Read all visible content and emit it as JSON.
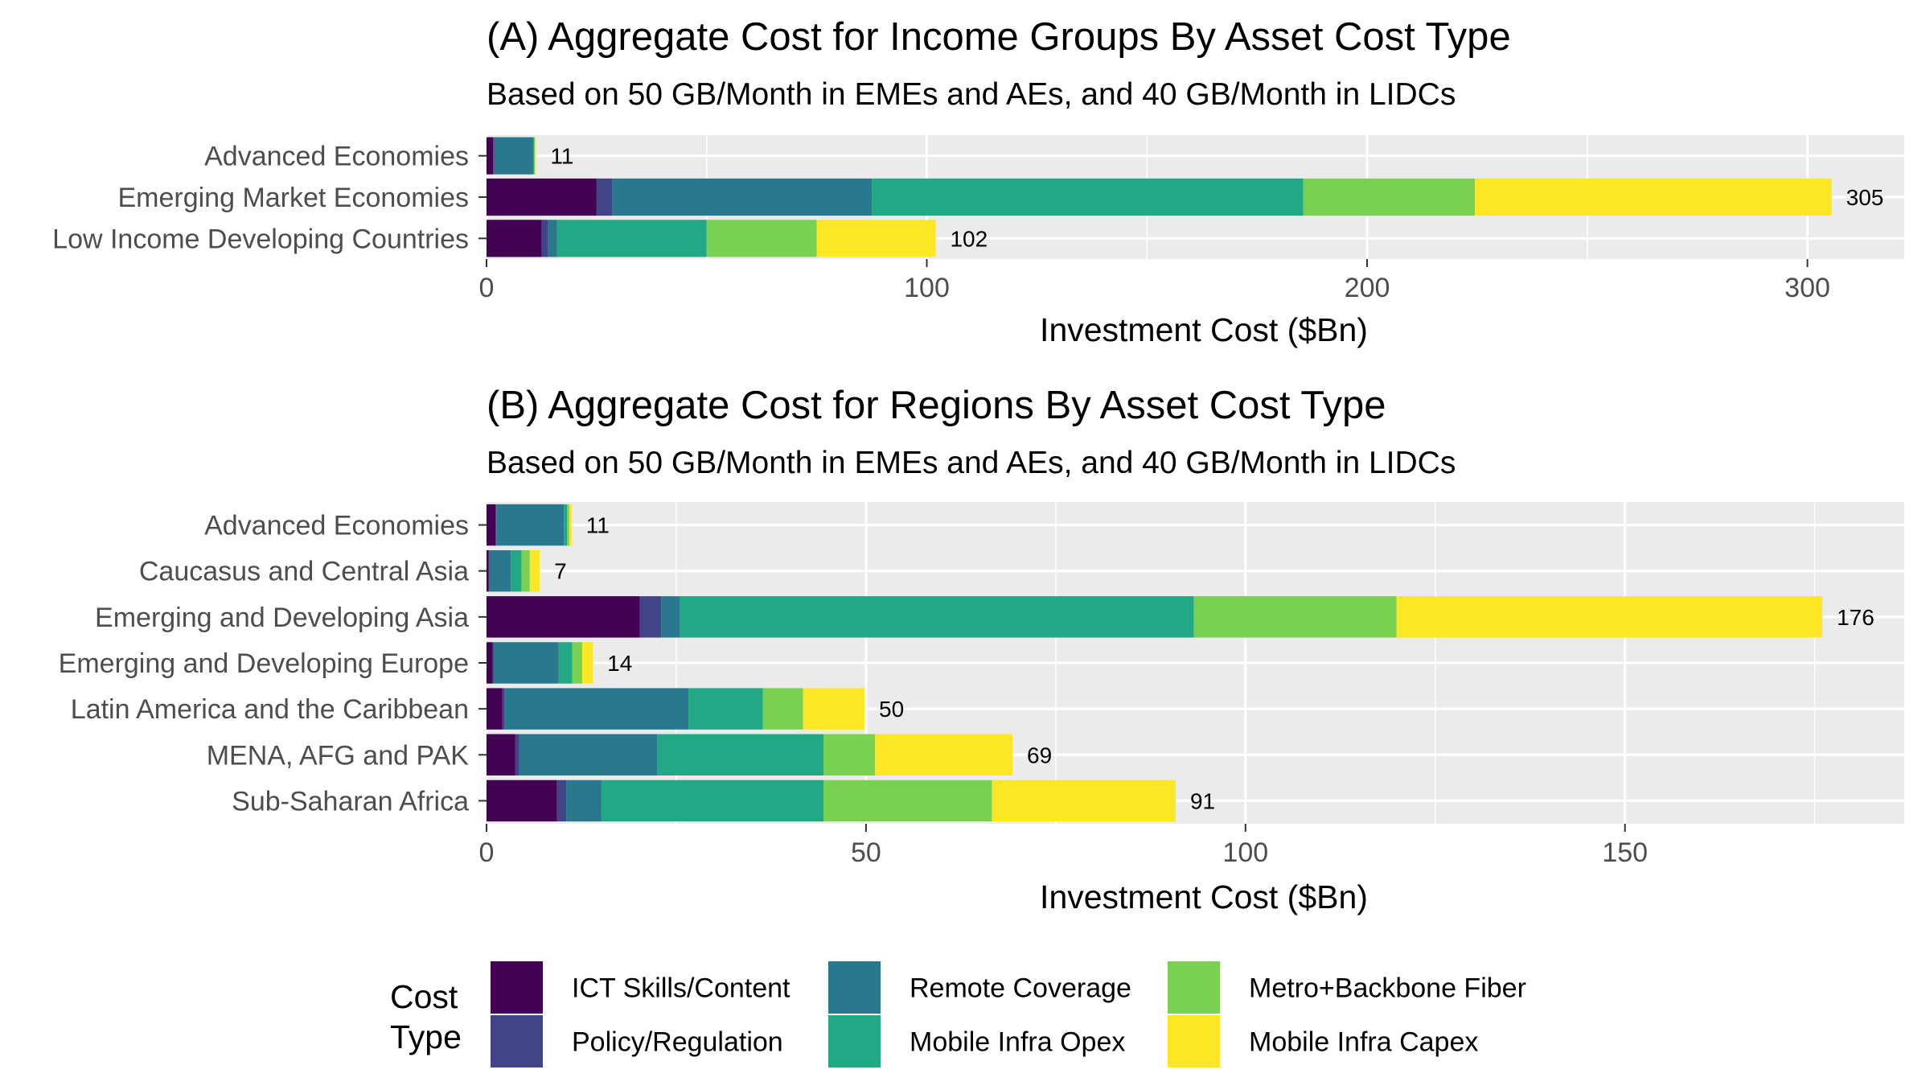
{
  "chart_data": [
    {
      "type": "bar",
      "orientation": "horizontal",
      "stacked": true,
      "title": "(A) Aggregate Cost for Income Groups By Asset Cost Type",
      "subtitle": "Based on 50 GB/Month in EMEs and AEs, and 40 GB/Month in LIDCs",
      "xlabel": "Investment Cost ($Bn)",
      "ylabel": "",
      "xlim": [
        0,
        322
      ],
      "xticks": [
        0,
        100,
        200,
        300
      ],
      "grid": true,
      "categories": [
        "Advanced Economies",
        "Emerging Market Economies",
        "Low Income Developing Countries"
      ],
      "totals": [
        "11",
        "305",
        "102"
      ],
      "series": [
        {
          "name": "ICT Skills/Content",
          "color": "#440154",
          "values": [
            1.5,
            25,
            12.5
          ]
        },
        {
          "name": "Policy/Regulation",
          "color": "#414487",
          "values": [
            0.3,
            3.5,
            1.5
          ]
        },
        {
          "name": "Remote Coverage",
          "color": "#2a788e",
          "values": [
            8.7,
            59,
            2
          ]
        },
        {
          "name": "Mobile Infra Opex",
          "color": "#22a884",
          "values": [
            0.3,
            98,
            34
          ]
        },
        {
          "name": "Metro+Backbone Fiber",
          "color": "#7ad151",
          "values": [
            0.2,
            39,
            25
          ]
        },
        {
          "name": "Mobile Infra Capex",
          "color": "#fde725",
          "values": [
            0.2,
            81,
            27
          ]
        }
      ]
    },
    {
      "type": "bar",
      "orientation": "horizontal",
      "stacked": true,
      "title": "(B) Aggregate Cost for Regions By Asset Cost Type",
      "subtitle": "Based on 50 GB/Month in EMEs and AEs, and 40 GB/Month in LIDCs",
      "xlabel": "Investment Cost ($Bn)",
      "ylabel": "",
      "xlim": [
        0,
        186.8
      ],
      "xticks": [
        0,
        50,
        100,
        150
      ],
      "grid": true,
      "categories": [
        "Advanced Economies",
        "Caucasus and Central Asia",
        "Emerging and Developing Asia",
        "Emerging and Developing Europe",
        "Latin America and the Caribbean",
        "MENA, AFG and PAK",
        "Sub-Saharan Africa"
      ],
      "totals": [
        "11",
        "7",
        "176",
        "14",
        "50",
        "69",
        "91"
      ],
      "series": [
        {
          "name": "ICT Skills/Content",
          "color": "#440154",
          "values": [
            1.2,
            0.3,
            20.2,
            0.8,
            2.1,
            3.8,
            9.3
          ]
        },
        {
          "name": "Policy/Regulation",
          "color": "#414487",
          "values": [
            0.1,
            0.1,
            2.8,
            0.1,
            0.3,
            0.5,
            1.2
          ]
        },
        {
          "name": "Remote Coverage",
          "color": "#2a788e",
          "values": [
            8.9,
            2.8,
            2.5,
            8.6,
            24.2,
            18.2,
            4.6
          ]
        },
        {
          "name": "Mobile Infra Opex",
          "color": "#22a884",
          "values": [
            0.4,
            1.4,
            67.7,
            1.8,
            9.8,
            21.9,
            29.3
          ]
        },
        {
          "name": "Metro+Backbone Fiber",
          "color": "#7ad151",
          "values": [
            0.3,
            1.1,
            26.7,
            1.3,
            5.3,
            6.8,
            22.2
          ]
        },
        {
          "name": "Mobile Infra Capex",
          "color": "#fde725",
          "values": [
            0.3,
            1.3,
            56.1,
            1.4,
            8.1,
            18.1,
            24.2
          ]
        }
      ]
    }
  ],
  "legend": {
    "title_line1": "Cost",
    "title_line2": "Type",
    "items": [
      {
        "label": "ICT Skills/Content",
        "color": "#440154"
      },
      {
        "label": "Policy/Regulation",
        "color": "#414487"
      },
      {
        "label": "Remote Coverage",
        "color": "#2a788e"
      },
      {
        "label": "Mobile Infra Opex",
        "color": "#22a884"
      },
      {
        "label": "Metro+Backbone Fiber",
        "color": "#7ad151"
      },
      {
        "label": "Mobile Infra Capex",
        "color": "#fde725"
      }
    ]
  }
}
